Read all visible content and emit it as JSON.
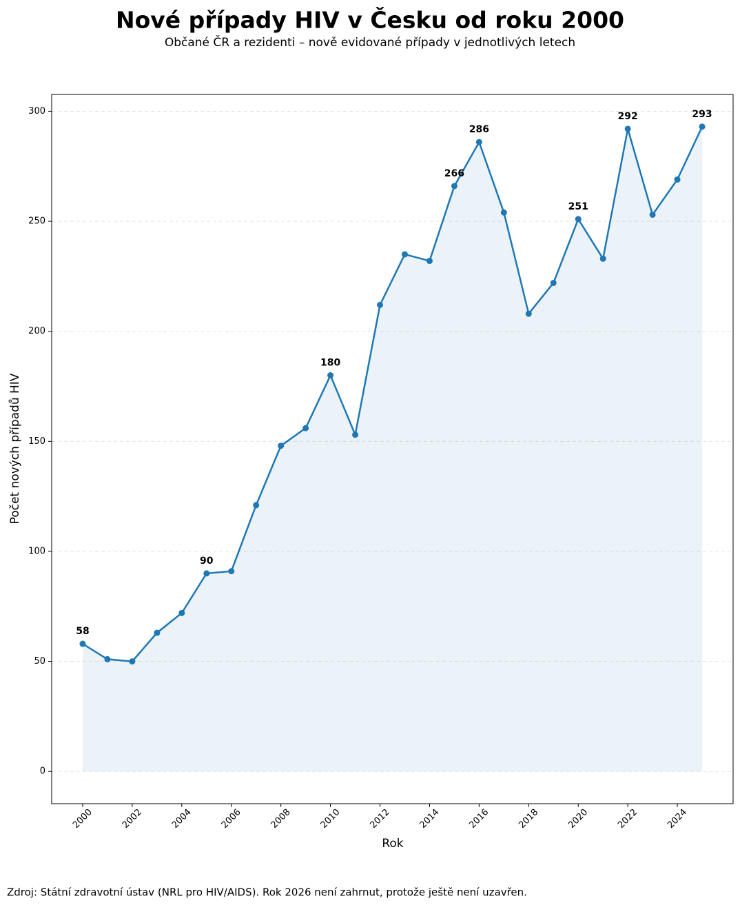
{
  "chart_data": {
    "type": "line",
    "title": "Nové případy HIV v Česku od roku 2000",
    "subtitle": "Občané ČR a rezidenti – nově evidované případy v jednotlivých letech",
    "x_label": "Rok",
    "y_label": "Počet nových případů HIV",
    "source": "Zdroj: Státní zdravotní ústav (NRL pro HIV/AIDS). Rok 2026 není zahrnut, protože ještě není uzavřen.",
    "x": [
      2000,
      2001,
      2002,
      2003,
      2004,
      2005,
      2006,
      2007,
      2008,
      2009,
      2010,
      2011,
      2012,
      2013,
      2014,
      2015,
      2016,
      2017,
      2018,
      2019,
      2020,
      2021,
      2022,
      2023,
      2024,
      2025
    ],
    "series": [
      {
        "name": "Nové případy HIV",
        "color": "#1f77b4",
        "values": [
          58,
          51,
          50,
          63,
          72,
          90,
          91,
          121,
          148,
          156,
          180,
          153,
          212,
          235,
          232,
          266,
          286,
          254,
          208,
          222,
          251,
          233,
          292,
          253,
          269,
          293
        ],
        "value_labels": [
          "58",
          null,
          null,
          null,
          null,
          "90",
          null,
          null,
          null,
          null,
          "180",
          null,
          null,
          null,
          null,
          "266",
          "286",
          null,
          null,
          null,
          "251",
          null,
          "292",
          null,
          null,
          "293"
        ]
      }
    ],
    "area_fill": true,
    "xlim": [
      1998.75,
      2026.25
    ],
    "xticks": [
      2000,
      2002,
      2004,
      2006,
      2008,
      2010,
      2012,
      2014,
      2016,
      2018,
      2020,
      2022,
      2024
    ],
    "ylim": [
      -14.65,
      307.65
    ],
    "yticks": [
      0,
      50,
      100,
      150,
      200,
      250,
      300
    ],
    "grid": true
  }
}
